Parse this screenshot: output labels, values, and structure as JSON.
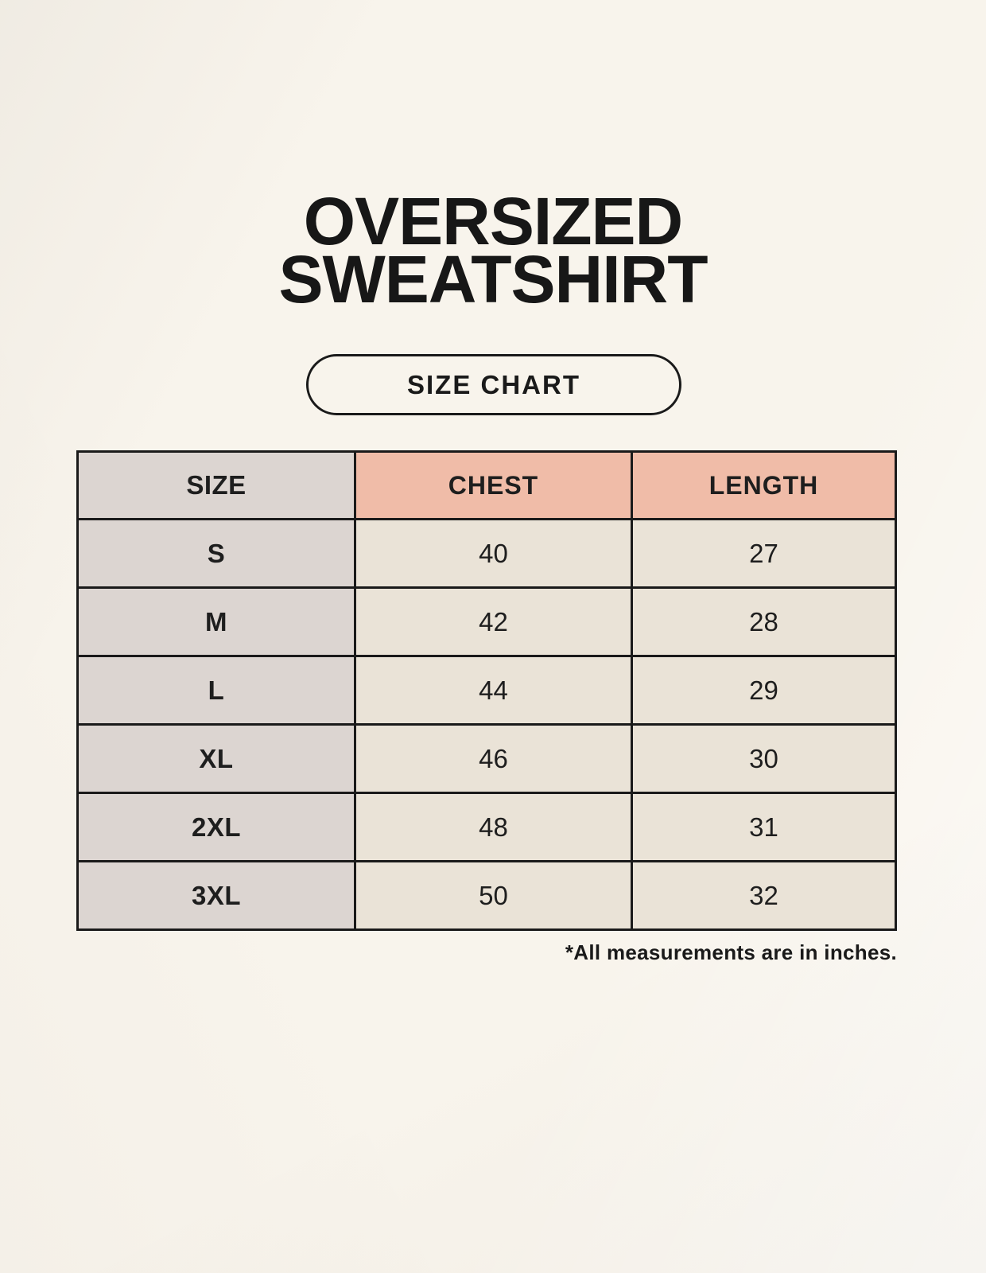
{
  "page": {
    "title_line1": "OVERSIZED",
    "title_line2": "SWEATSHIRT",
    "button_label": "SIZE CHART",
    "footnote": "*All measurements are in inches."
  },
  "colors": {
    "background": "#F8F4EC",
    "size_column_bg": "#DCD5D1",
    "measure_header_bg": "#F0BCA8",
    "value_cell_bg": "#EAE3D7",
    "border": "#1A1A1A",
    "text": "#1E1E1E"
  },
  "table": {
    "columns": [
      "SIZE",
      "CHEST",
      "LENGTH"
    ],
    "rows": [
      {
        "size": "S",
        "chest": "40",
        "length": "27"
      },
      {
        "size": "M",
        "chest": "42",
        "length": "28"
      },
      {
        "size": "L",
        "chest": "44",
        "length": "29"
      },
      {
        "size": "XL",
        "chest": "46",
        "length": "30"
      },
      {
        "size": "2XL",
        "chest": "48",
        "length": "31"
      },
      {
        "size": "3XL",
        "chest": "50",
        "length": "32"
      }
    ],
    "units": "inches"
  }
}
